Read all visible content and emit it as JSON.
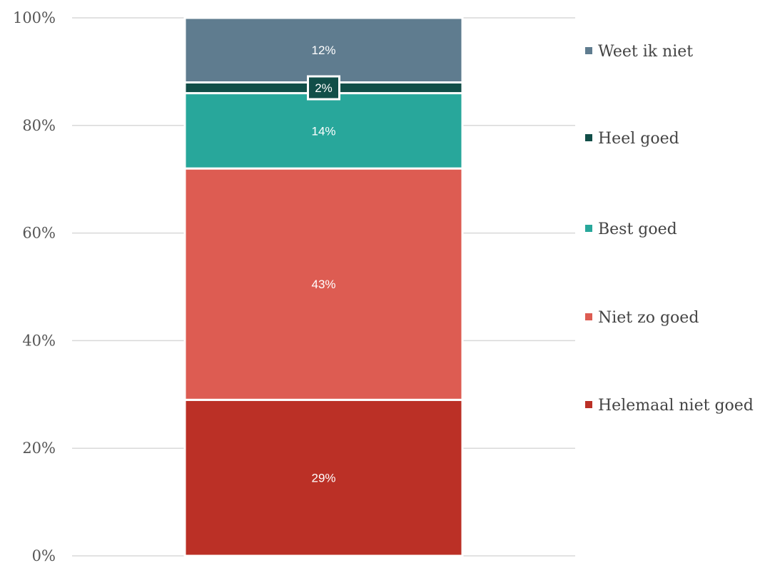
{
  "chart_data": {
    "type": "bar",
    "stacked": true,
    "categories": [
      ""
    ],
    "series": [
      {
        "name": "Helemaal niet goed",
        "values": [
          29
        ],
        "label": "29%",
        "color": "#bb3026"
      },
      {
        "name": "Niet zo goed",
        "values": [
          43
        ],
        "label": "43%",
        "color": "#dd5c52"
      },
      {
        "name": "Best goed",
        "values": [
          14
        ],
        "label": "14%",
        "color": "#28a79b"
      },
      {
        "name": "Heel goed",
        "values": [
          2
        ],
        "label": "2%",
        "color": "#114e48"
      },
      {
        "name": "Weet ik niet",
        "values": [
          12
        ],
        "label": "12%",
        "color": "#5f7c8f"
      }
    ],
    "yticks": [
      "0%",
      "20%",
      "40%",
      "60%",
      "80%",
      "100%"
    ],
    "ylim": [
      0,
      100
    ],
    "grid": true,
    "legend": "right"
  }
}
